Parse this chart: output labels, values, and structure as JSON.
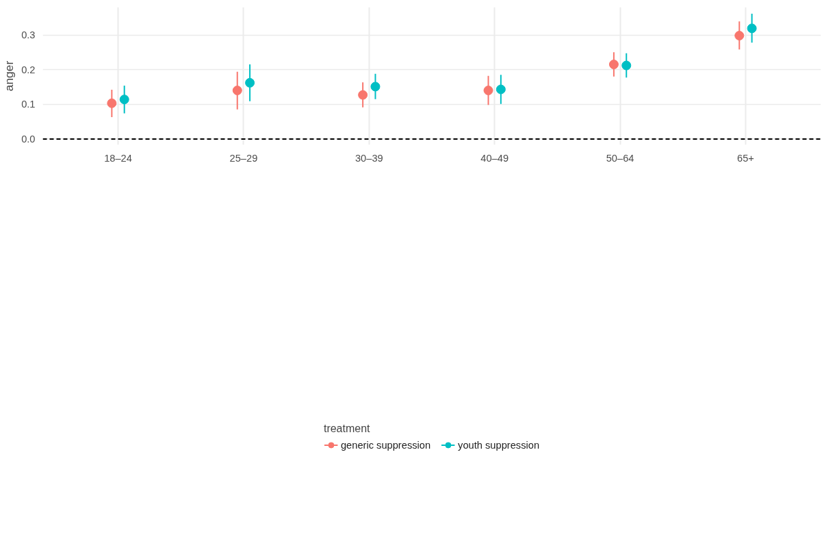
{
  "chart_data": {
    "type": "scatter",
    "ylabel": "anger",
    "legend_title": "treatment",
    "categories": [
      "18–24",
      "25–29",
      "30–39",
      "40–49",
      "50–64",
      "65+"
    ],
    "series": [
      {
        "name": "generic suppression",
        "color": "#f8766d",
        "values": [
          0.103,
          0.14,
          0.127,
          0.14,
          0.215,
          0.298
        ],
        "errors": [
          [
            0.063,
            0.142
          ],
          [
            0.085,
            0.194
          ],
          [
            0.091,
            0.163
          ],
          [
            0.098,
            0.182
          ],
          [
            0.18,
            0.25
          ],
          [
            0.258,
            0.339
          ]
        ]
      },
      {
        "name": "youth suppression",
        "color": "#00bfc4",
        "values": [
          0.114,
          0.162,
          0.151,
          0.143,
          0.212,
          0.319
        ],
        "errors": [
          [
            0.074,
            0.154
          ],
          [
            0.109,
            0.215
          ],
          [
            0.115,
            0.188
          ],
          [
            0.101,
            0.185
          ],
          [
            0.177,
            0.247
          ],
          [
            0.278,
            0.361
          ]
        ]
      }
    ],
    "ylim": [
      -0.017,
      0.38
    ],
    "yticks": [
      {
        "value": 0.0,
        "label": "0.0"
      },
      {
        "value": 0.1,
        "label": "0.1"
      },
      {
        "value": 0.2,
        "label": "0.2"
      },
      {
        "value": 0.3,
        "label": "0.3"
      }
    ],
    "ref_lines": [
      {
        "axis": "y",
        "value": 0,
        "label": null,
        "color": "#000000",
        "line_style": "dashed"
      }
    ],
    "grid": true,
    "legend": "bottom",
    "marker": "circle"
  }
}
